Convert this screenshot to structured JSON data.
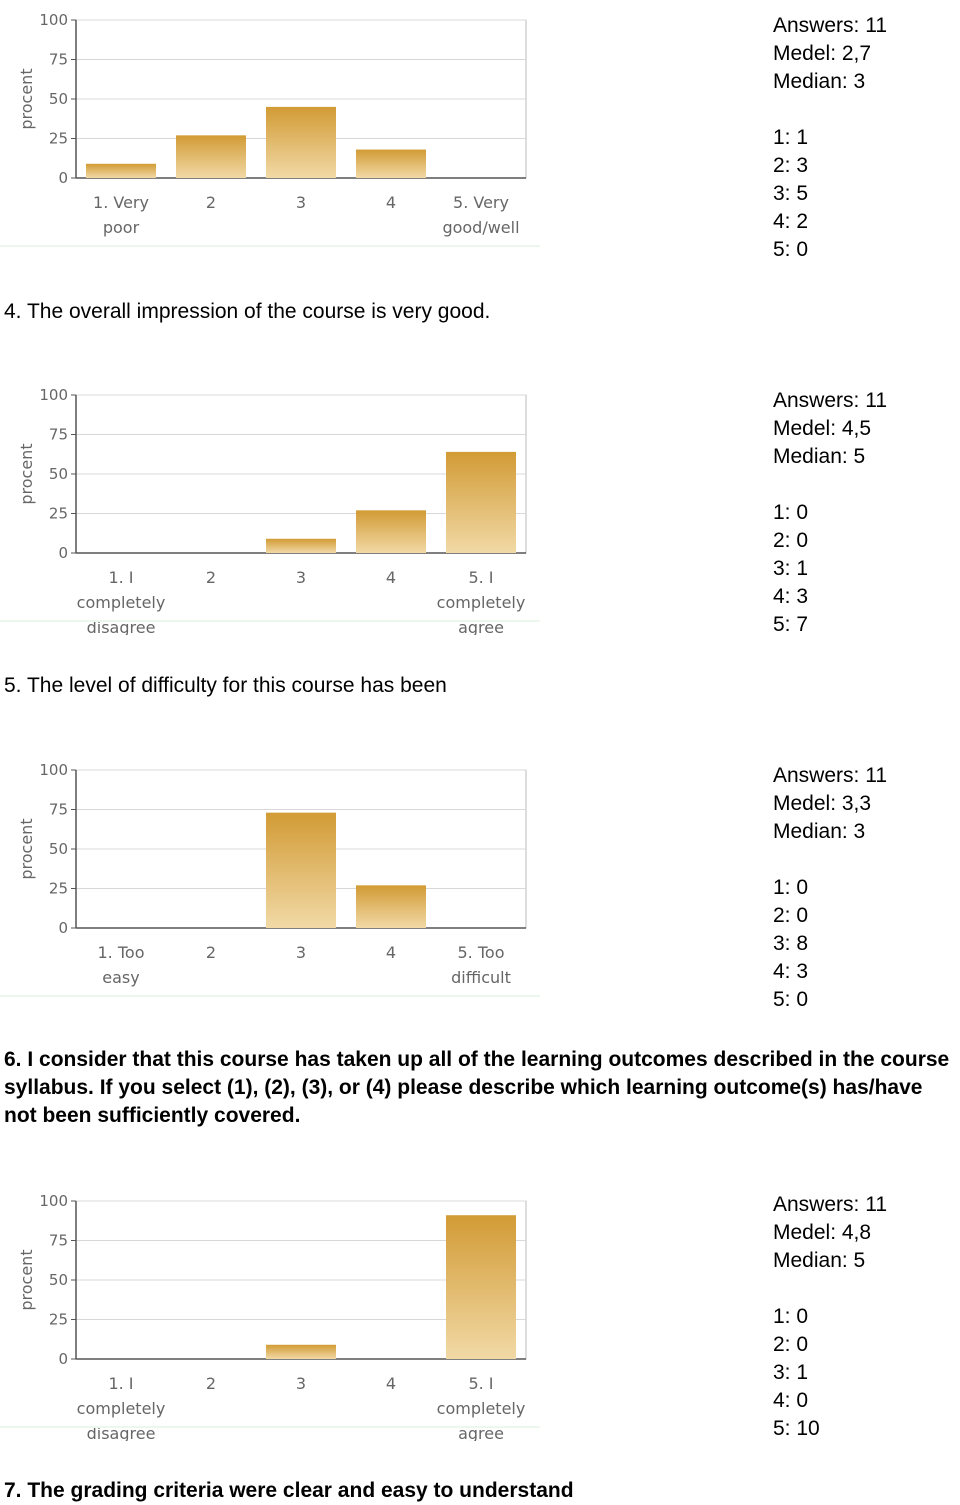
{
  "chart_data": [
    {
      "type": "bar",
      "ylabel": "procent",
      "ylim": [
        0,
        100
      ],
      "yticks": [
        "100",
        "75",
        "50",
        "25",
        "0"
      ],
      "categories": [
        [
          "1. Very",
          "poor"
        ],
        [
          "2"
        ],
        [
          "3"
        ],
        [
          "4"
        ],
        [
          "5. Very",
          "good/well"
        ]
      ],
      "values": [
        9,
        27,
        45,
        18,
        0
      ],
      "stats": {
        "answers": "Answers: 11",
        "medel": "Medel: 2,7",
        "median": "Median: 3",
        "counts": [
          "1: 1",
          "2: 3",
          "3: 5",
          "4: 2",
          "5: 0"
        ]
      }
    },
    {
      "type": "bar",
      "ylabel": "procent",
      "ylim": [
        0,
        100
      ],
      "yticks": [
        "100",
        "75",
        "50",
        "25",
        "0"
      ],
      "categories": [
        [
          "1. I",
          "completely",
          "disagree"
        ],
        [
          "2"
        ],
        [
          "3"
        ],
        [
          "4"
        ],
        [
          "5. I",
          "completely",
          "agree"
        ]
      ],
      "values": [
        0,
        0,
        9,
        27,
        64
      ],
      "stats": {
        "answers": "Answers: 11",
        "medel": "Medel: 4,5",
        "median": "Median: 5",
        "counts": [
          "1: 0",
          "2: 0",
          "3: 1",
          "4: 3",
          "5: 7"
        ]
      }
    },
    {
      "type": "bar",
      "ylabel": "procent",
      "ylim": [
        0,
        100
      ],
      "yticks": [
        "100",
        "75",
        "50",
        "25",
        "0"
      ],
      "categories": [
        [
          "1. Too",
          "easy"
        ],
        [
          "2"
        ],
        [
          "3"
        ],
        [
          "4"
        ],
        [
          "5. Too",
          "difficult"
        ]
      ],
      "values": [
        0,
        0,
        73,
        27,
        0
      ],
      "stats": {
        "answers": "Answers: 11",
        "medel": "Medel: 3,3",
        "median": "Median: 3",
        "counts": [
          "1: 0",
          "2: 0",
          "3: 8",
          "4: 3",
          "5: 0"
        ]
      }
    },
    {
      "type": "bar",
      "ylabel": "procent",
      "ylim": [
        0,
        100
      ],
      "yticks": [
        "100",
        "75",
        "50",
        "25",
        "0"
      ],
      "categories": [
        [
          "1. I",
          "completely",
          "disagree"
        ],
        [
          "2"
        ],
        [
          "3"
        ],
        [
          "4"
        ],
        [
          "5. I",
          "completely",
          "agree"
        ]
      ],
      "values": [
        0,
        0,
        9,
        0,
        91
      ],
      "stats": {
        "answers": "Answers: 11",
        "medel": "Medel: 4,8",
        "median": "Median: 5",
        "counts": [
          "1: 0",
          "2: 0",
          "3: 1",
          "4: 0",
          "5: 10"
        ]
      }
    }
  ],
  "questions": {
    "q4": "4.  The overall impression of the course is very good.",
    "q5": "5.  The level of difficulty for this course has been",
    "q6": "6.  I consider that this course has taken up all of the learning outcomes described in the course syllabus. If you select (1), (2), (3), or (4) please describe which learning outcome(s) has/have not been sufficiently covered.",
    "q7": "7.  The grading criteria were clear and easy to understand"
  },
  "colors": {
    "bar_light": "#f1d9a6",
    "bar_dark": "#d29b35",
    "axis": "#555555",
    "grid": "#d8d8d8"
  }
}
